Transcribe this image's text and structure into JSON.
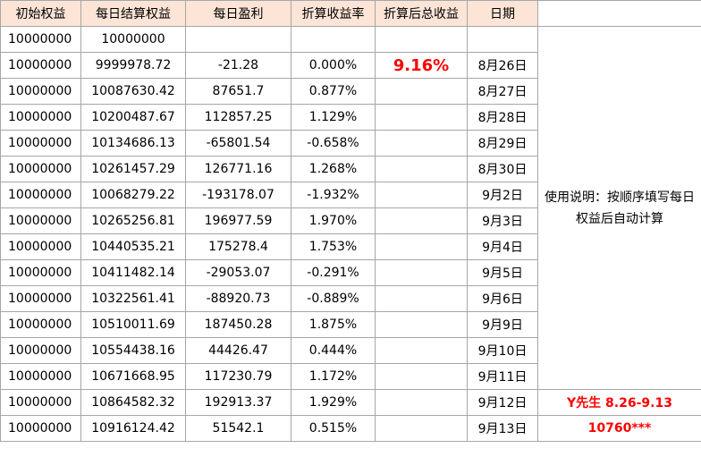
{
  "table": {
    "header": [
      "初始权益",
      "每日结算权益",
      "每日盈利",
      "折算收益率",
      "折算后总收益",
      "日期"
    ],
    "rows": [
      [
        "10000000",
        "10000000",
        null,
        null,
        null,
        null
      ],
      [
        "10000000",
        "9999978.72",
        "-21.28",
        "0.000%",
        "9.16%",
        "8月26日"
      ],
      [
        "10000000",
        "10087630.42",
        "87651.7",
        "0.877%",
        null,
        "8月27日"
      ],
      [
        "10000000",
        "10200487.67",
        "112857.25",
        "1.129%",
        null,
        "8月28日"
      ],
      [
        "10000000",
        "10134686.13",
        "-65801.54",
        "-0.658%",
        null,
        "8月29日"
      ],
      [
        "10000000",
        "10261457.29",
        "126771.16",
        "1.268%",
        null,
        "8月30日"
      ],
      [
        "10000000",
        "10068279.22",
        "-193178.07",
        "-1.932%",
        null,
        "9月2日"
      ],
      [
        "10000000",
        "10265256.81",
        "196977.59",
        "1.970%",
        null,
        "9月3日"
      ],
      [
        "10000000",
        "10440535.21",
        "175278.4",
        "1.753%",
        null,
        "9月4日"
      ],
      [
        "10000000",
        "10411482.14",
        "-29053.07",
        "-0.291%",
        null,
        "9月5日"
      ],
      [
        "10000000",
        "10322561.41",
        "-88920.73",
        "-0.889%",
        null,
        "9月6日"
      ],
      [
        "10000000",
        "10510011.69",
        "187450.28",
        "1.875%",
        null,
        "9月9日"
      ],
      [
        "10000000",
        "10554438.16",
        "44426.47",
        "0.444%",
        null,
        "9月10日"
      ],
      [
        "10000000",
        "10671668.95",
        "117230.79",
        "1.172%",
        null,
        "9月11日"
      ],
      [
        "10000000",
        "10864582.32",
        "192913.37",
        "1.929%",
        null,
        "9月12日"
      ],
      [
        "10000000",
        "10916124.42",
        "51542.1",
        "0.515%",
        null,
        "9月13日"
      ]
    ],
    "note": "使用说明：按顺序填写每日权益后自动计算",
    "footer": [
      "Y先生 8.26-9.13",
      "10760***"
    ]
  }
}
